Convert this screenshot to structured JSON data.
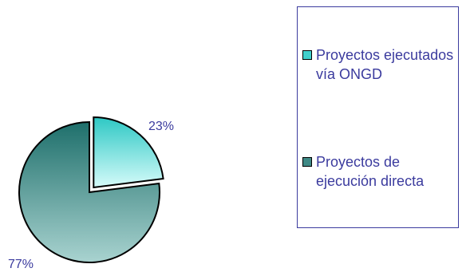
{
  "chart_data": {
    "type": "pie",
    "title": "",
    "slices": [
      {
        "label": "Proyectos ejecutados vía ONGD",
        "value": 23,
        "display": "23%",
        "color": "#40d0cc",
        "exploded": true
      },
      {
        "label": "Proyectos de ejecución directa",
        "value": 77,
        "display": "77%",
        "color": "#4a9a96",
        "exploded": false
      }
    ],
    "legend_position": "right"
  },
  "legend": {
    "items": [
      {
        "label": "Proyectos ejecutados vía ONGD",
        "color": "#40d0cc"
      },
      {
        "label": "Proyectos de ejecución directa",
        "color": "#3f8a86"
      }
    ]
  }
}
